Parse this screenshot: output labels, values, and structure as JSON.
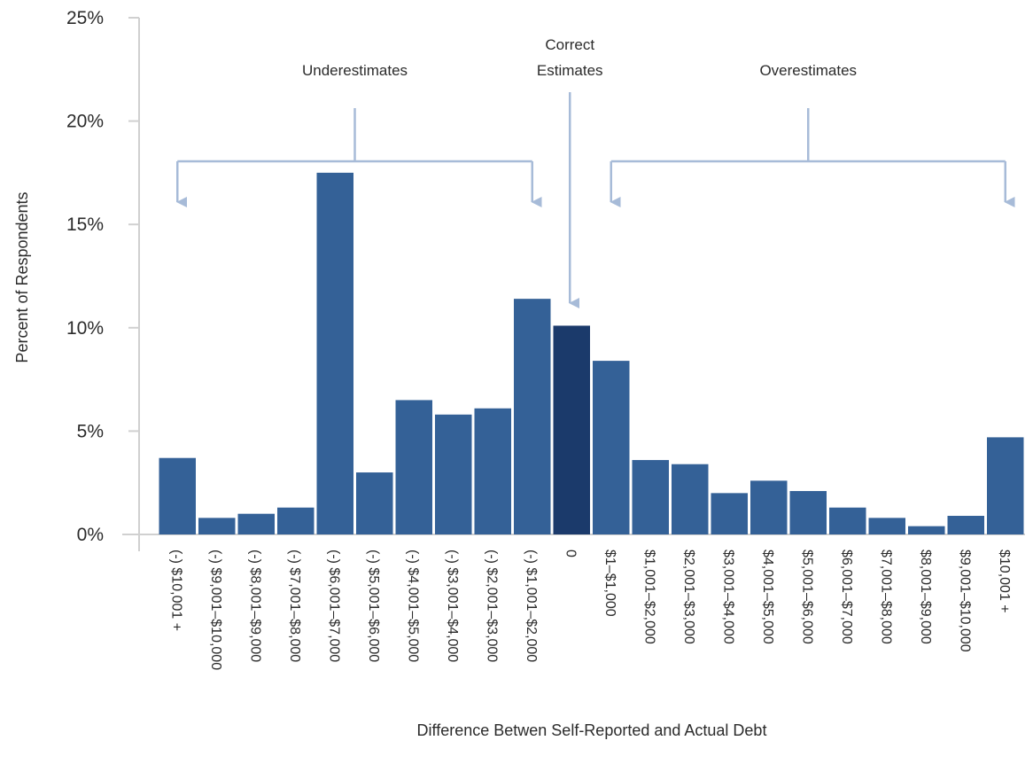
{
  "chart_data": {
    "type": "bar",
    "title": "",
    "xlabel": "Difference Betwen Self-Reported and Actual Debt",
    "ylabel": "Percent of Respondents",
    "ylim": [
      0,
      25
    ],
    "yticks": [
      "0%",
      "5%",
      "10%",
      "15%",
      "20%",
      "25%"
    ],
    "ytick_values": [
      0,
      5,
      10,
      15,
      20,
      25
    ],
    "grid": false,
    "categories": [
      "(-) $10,001 +",
      "(-) $9,001–$10,000",
      "(-) $8,001–$9,000",
      "(-) $7,001–$8,000",
      "(-) $6,001–$7,000",
      "(-) $5,001–$6,000",
      "(-) $4,001–$5,000",
      "(-) $3,001–$4,000",
      "(-) $2,001–$3,000",
      "(-) $1,001–$2,000",
      "0",
      "$1–$1,000",
      "$1,001–$2,000",
      "$2,001–$3,000",
      "$3,001–$4,000",
      "$4,001–$5,000",
      "$5,001–$6,000",
      "$6,001–$7,000",
      "$7,001–$8,000",
      "$8,001–$9,000",
      "$9,001–$10,000",
      "$10,001 +"
    ],
    "values": [
      3.7,
      0.8,
      1.0,
      1.3,
      17.5,
      3.0,
      6.5,
      5.8,
      6.1,
      11.4,
      10.1,
      8.4,
      3.6,
      3.4,
      2.0,
      2.6,
      2.1,
      1.3,
      0.8,
      0.4,
      0.9,
      4.7
    ],
    "colors": {
      "bar": "#346197",
      "highlight": "#1b3a6b",
      "bracket": "#a7bbd8",
      "axis": "#d0d0d0"
    },
    "highlight_category": "0",
    "annotations": [
      {
        "text": "Underestimates",
        "from": "(-) $10,001 +",
        "to": "(-) $1,001–$2,000"
      },
      {
        "text": "Overestimates",
        "from": "$1–$1,000",
        "to": "$10,001 +"
      },
      {
        "text": "Correct Estimates",
        "lines": [
          "Correct",
          "Estimates"
        ],
        "at": "0"
      }
    ]
  }
}
